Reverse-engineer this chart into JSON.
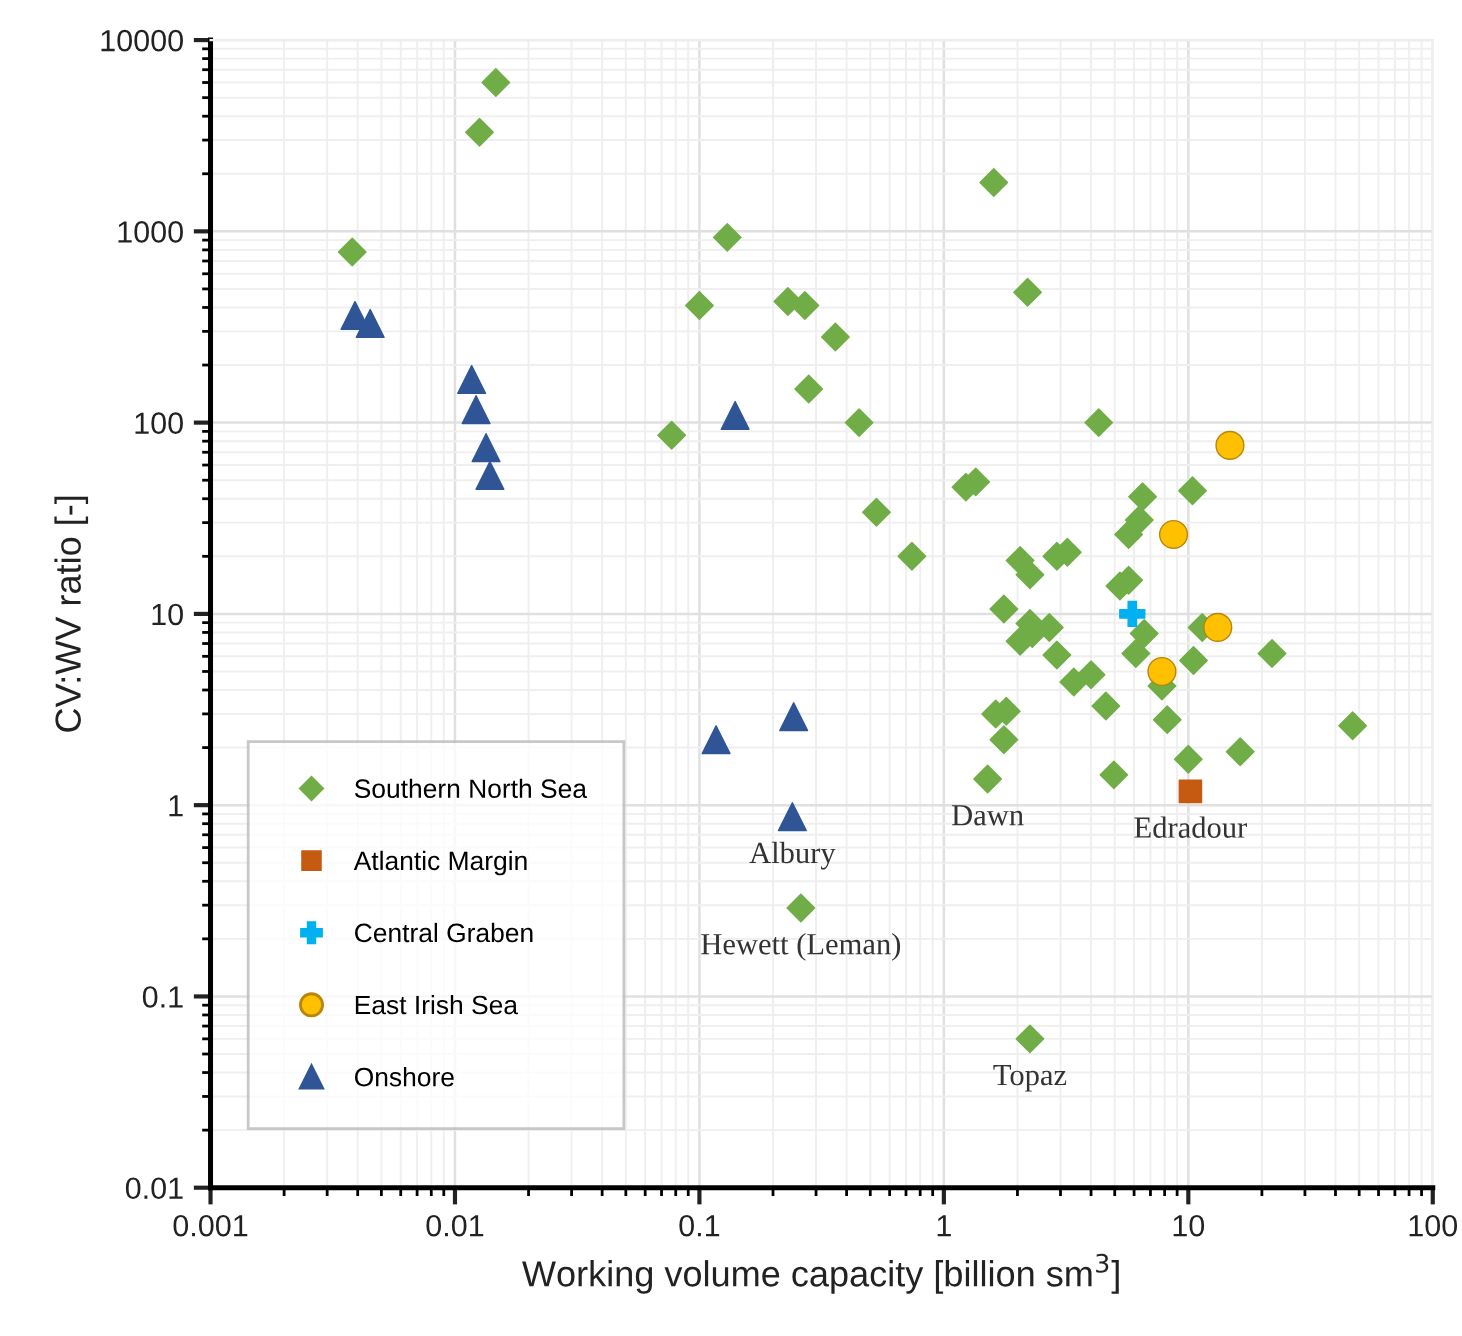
{
  "chart_data": {
    "type": "scatter",
    "xlabel": "Working volume capacity [billion sm$^{3}$]",
    "ylabel": "CV:WV ratio [-]",
    "log": "xy",
    "xlim": [
      0.001,
      100
    ],
    "ylim": [
      0.01,
      10000
    ],
    "xticks": [
      0.001,
      0.01,
      0.1,
      1,
      10,
      100
    ],
    "yticks": [
      0.01,
      0.1,
      1,
      10,
      100,
      1000,
      10000
    ],
    "grid": true,
    "legend": "bottom left",
    "series": [
      {
        "name": "Southern North Sea",
        "color": "#70ad47",
        "marker": "diamond",
        "x": [
          0.0147,
          0.0126,
          0.0038,
          0.077,
          0.1,
          0.13,
          0.23,
          0.27,
          0.36,
          0.28,
          0.45,
          0.53,
          0.74,
          1.23,
          1.35,
          1.6,
          2.2,
          4.3,
          6.5,
          10.4,
          6.3,
          5.7,
          2.05,
          2.25,
          2.9,
          3.2,
          5.25,
          5.7,
          1.76,
          2.25,
          2.7,
          2.05,
          2.3,
          2.9,
          6.1,
          6.6,
          11.4,
          7.8,
          10.5,
          22,
          3.4,
          4.0,
          4.6,
          8.2,
          1.63,
          1.8,
          1.76,
          1.51,
          4.96,
          10,
          16.3,
          47,
          0.26,
          2.25
        ],
        "values": [
          6000,
          3300,
          780,
          86,
          410,
          930,
          430,
          410,
          280,
          150,
          100,
          34,
          20,
          46,
          49,
          1800,
          480,
          100,
          41,
          44,
          31,
          26,
          19,
          16,
          20,
          21,
          14,
          15,
          10.6,
          8.9,
          8.5,
          7.2,
          7.9,
          6.1,
          6.2,
          7.9,
          8.5,
          4.2,
          5.7,
          6.2,
          4.4,
          4.8,
          3.3,
          2.8,
          3.0,
          3.1,
          2.2,
          1.37,
          1.44,
          1.74,
          1.9,
          2.6,
          0.29,
          0.06
        ]
      },
      {
        "name": "Atlantic Margin",
        "color": "#c55a11",
        "marker": "square",
        "x": [
          10.2
        ],
        "values": [
          1.18
        ]
      },
      {
        "name": "Central Graben",
        "color": "#00b0f0",
        "marker": "cross",
        "x": [
          5.9
        ],
        "values": [
          10
        ]
      },
      {
        "name": "East Irish Sea",
        "color": "#ffc000",
        "marker": "circle",
        "x": [
          14.8,
          8.7,
          13.2,
          7.8
        ],
        "values": [
          76,
          26,
          8.5,
          5.0
        ]
      },
      {
        "name": "Onshore",
        "color": "#2f5597",
        "marker": "triangle",
        "x": [
          0.0039,
          0.0045,
          0.0117,
          0.0122,
          0.0134,
          0.0139,
          0.14,
          0.117,
          0.243,
          0.24
        ],
        "values": [
          363,
          330,
          168,
          117,
          74,
          53,
          109,
          2.2,
          2.9,
          0.87
        ]
      }
    ],
    "annotations": [
      {
        "text": "Albury",
        "x": 0.24,
        "y": 0.87
      },
      {
        "text": "Hewett (Leman)",
        "x": 0.26,
        "y": 0.29
      },
      {
        "text": "Dawn",
        "x": 1.51,
        "y": 1.37
      },
      {
        "text": "Edradour",
        "x": 10.2,
        "y": 1.18
      },
      {
        "text": "Topaz",
        "x": 2.25,
        "y": 0.06
      }
    ]
  }
}
